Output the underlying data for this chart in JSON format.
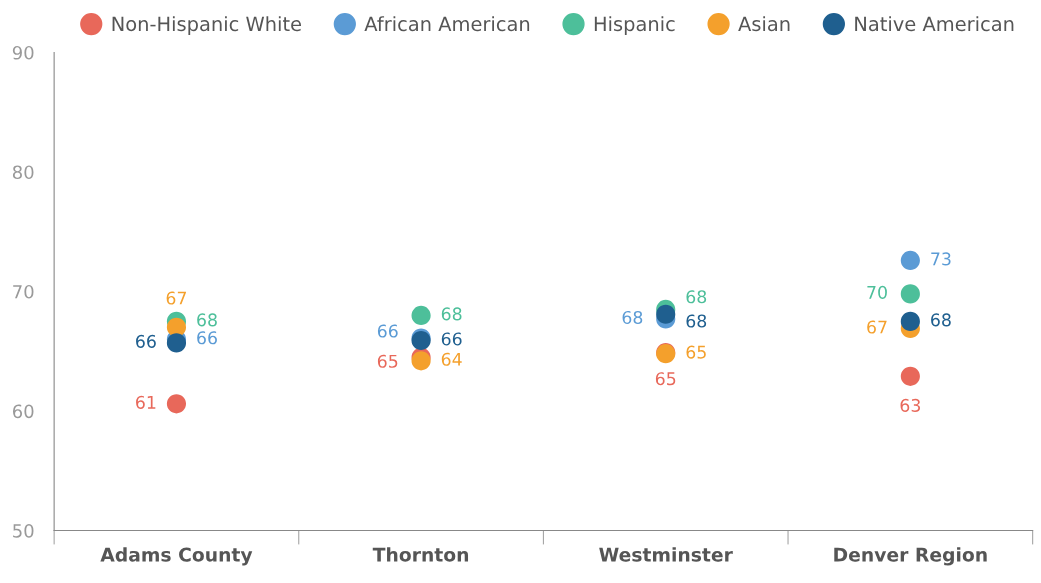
{
  "chart_data": {
    "type": "scatter",
    "categories": [
      "Adams County",
      "Thornton",
      "Westminster",
      "Denver Region"
    ],
    "series": [
      {
        "name": "Non-Hispanic White",
        "color": "#e8685a",
        "values": [
          60.6,
          64.5,
          64.9,
          62.9
        ],
        "value_labels": [
          "61",
          "65",
          "65",
          "63"
        ]
      },
      {
        "name": "African American",
        "color": "#5b9bd5",
        "values": [
          66.0,
          66.1,
          67.7,
          72.6
        ],
        "value_labels": [
          "66",
          "66",
          "68",
          "73"
        ]
      },
      {
        "name": "Hispanic",
        "color": "#4dbf9a",
        "values": [
          67.5,
          68.0,
          68.5,
          69.8
        ],
        "value_labels": [
          "68",
          "68",
          "68",
          "70"
        ]
      },
      {
        "name": "Asian",
        "color": "#f4a02c",
        "values": [
          67.0,
          64.2,
          64.8,
          66.9
        ],
        "value_labels": [
          "67",
          "64",
          "65",
          "67"
        ]
      },
      {
        "name": "Native American",
        "color": "#1f5f8f",
        "values": [
          65.7,
          65.9,
          68.1,
          67.5
        ],
        "value_labels": [
          "66",
          "66",
          "68",
          "68"
        ]
      }
    ],
    "ylim": [
      50,
      90
    ],
    "yticks": [
      50,
      60,
      70,
      80,
      90
    ],
    "grid": false,
    "legend": "top",
    "marker": "circle"
  }
}
